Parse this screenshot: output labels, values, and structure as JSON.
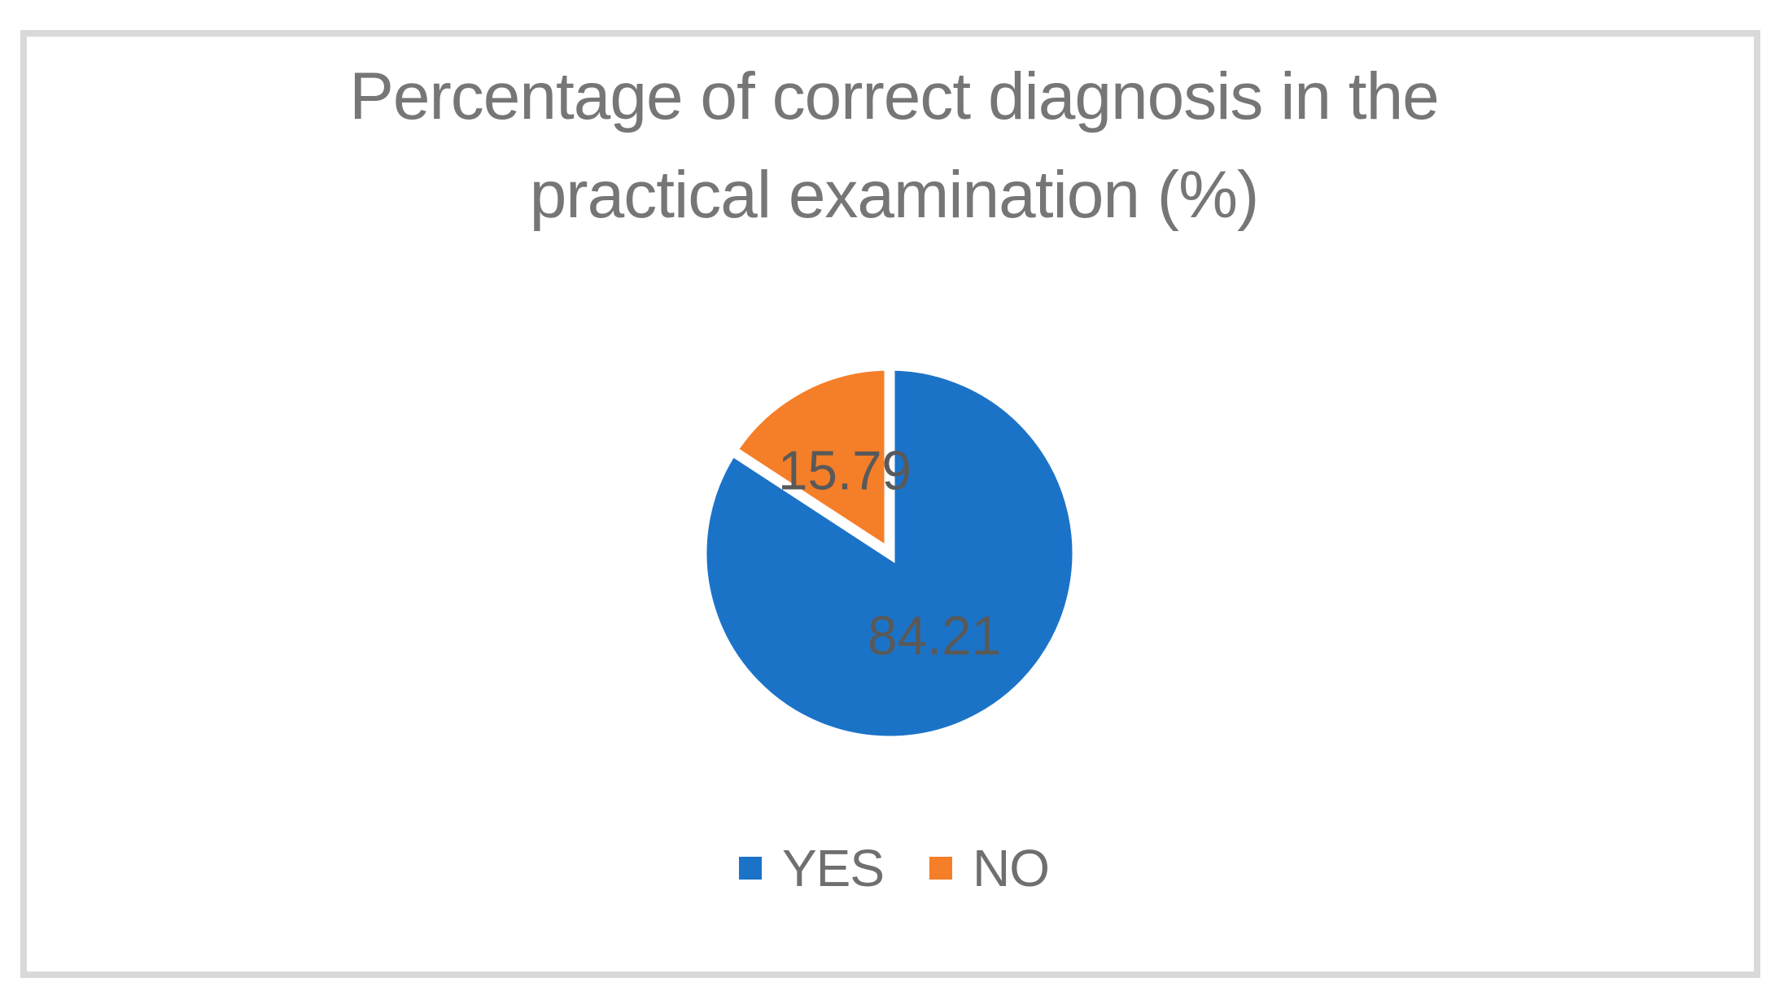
{
  "figure": {
    "background_color": "#FFFFFF",
    "border_color": "#D9D9D9"
  },
  "chart_data": {
    "type": "pie",
    "title": "Percentage of correct diagnosis in the practical examination (%)",
    "title_lines": [
      "Percentage of correct diagnosis in the",
      "practical examination (%)"
    ],
    "categories": [
      "YES",
      "NO"
    ],
    "values": [
      84.21,
      15.79
    ],
    "data_labels": [
      "84.21",
      "15.79"
    ],
    "colors": [
      "#1B73C8",
      "#F57E29"
    ],
    "slice_border_color": "#FFFFFF",
    "start_angle_deg": 0,
    "direction": "clockwise",
    "legend_position": "bottom",
    "title_color": "#767676",
    "label_color": "#595959",
    "legend_text_color": "#6F6F6F"
  }
}
